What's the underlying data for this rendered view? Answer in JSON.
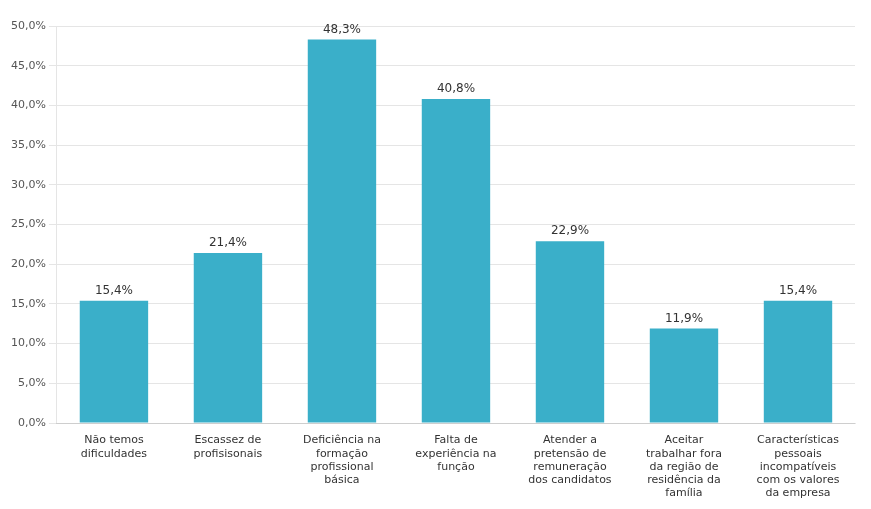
{
  "chart_data": {
    "type": "bar",
    "categories": [
      "Não temos\ndificuldades",
      "Escassez de\nprofisisonais",
      "Deficiência na\nformação\nprofissional\nbásica",
      "Falta de\nexperiência na\nfunção",
      "Atender a\npretensão de\nremuneração\ndos candidatos",
      "Aceitar\ntrabalhar fora\nda região de\nresidência da\nfamília",
      "Características\npessoais\nincompatíveis\ncom os valores\nda empresa"
    ],
    "values": [
      15.4,
      21.4,
      48.3,
      40.8,
      22.9,
      11.9,
      15.4
    ],
    "value_labels": [
      "15,4%",
      "21,4%",
      "48,3%",
      "40,8%",
      "22,9%",
      "11,9%",
      "15,4%"
    ],
    "data_labels": true,
    "color": "#3aafc9",
    "ylim": [
      0,
      50
    ],
    "yticks": [
      {
        "value": 0.0,
        "label": "0,0%"
      },
      {
        "value": 5.0,
        "label": "5,0%"
      },
      {
        "value": 10.0,
        "label": "10,0%"
      },
      {
        "value": 15.0,
        "label": "15,0%"
      },
      {
        "value": 20.0,
        "label": "20,0%"
      },
      {
        "value": 25.0,
        "label": "25,0%"
      },
      {
        "value": 30.0,
        "label": "30,0%"
      },
      {
        "value": 35.0,
        "label": "35,0%"
      },
      {
        "value": 40.0,
        "label": "40,0%"
      },
      {
        "value": 45.0,
        "label": "45,0%"
      },
      {
        "value": 50.0,
        "label": "50,0%"
      }
    ],
    "grid": true
  }
}
